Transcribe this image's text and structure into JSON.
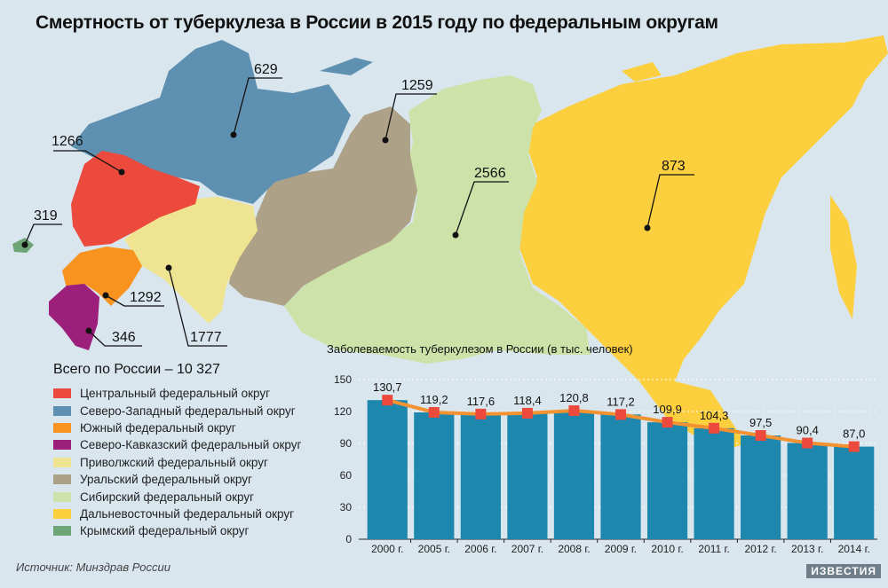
{
  "title": "Смертность от туберкулеза в России в 2015 году по федеральным округам",
  "colors": {
    "background": "#d9e6ee",
    "bar": "#1e87ad",
    "line": "#f29230",
    "marker": "#ec4a3c"
  },
  "legend": {
    "total": "Всего по России – 10 327",
    "items": [
      {
        "label": "Центральный федеральный округ",
        "color": "#ec4a3c"
      },
      {
        "label": "Северо-Западный федеральный округ",
        "color": "#5e90b1"
      },
      {
        "label": "Южный федеральный округ",
        "color": "#f7931e"
      },
      {
        "label": "Северо-Кавказский федеральный округ",
        "color": "#9c1f7c"
      },
      {
        "label": "Приволжский федеральный округ",
        "color": "#efe491"
      },
      {
        "label": "Уральский федеральный округ",
        "color": "#ada287"
      },
      {
        "label": "Сибирский федеральный округ",
        "color": "#cde2a9"
      },
      {
        "label": "Дальневосточный федеральный округ",
        "color": "#fccf3e"
      },
      {
        "label": "Крымский федеральный округ",
        "color": "#6ea576"
      }
    ]
  },
  "regions": [
    {
      "name": "Центральный",
      "deaths": "1266",
      "color": "#ec4a3c"
    },
    {
      "name": "Северо-Западный",
      "deaths": "629",
      "color": "#5e90b1"
    },
    {
      "name": "Южный",
      "deaths": "1292",
      "color": "#f7931e"
    },
    {
      "name": "Северо-Кавказский",
      "deaths": "346",
      "color": "#9c1f7c"
    },
    {
      "name": "Приволжский",
      "deaths": "1777",
      "color": "#efe491"
    },
    {
      "name": "Уральский",
      "deaths": "1259",
      "color": "#ada287"
    },
    {
      "name": "Сибирский",
      "deaths": "2566",
      "color": "#cde2a9"
    },
    {
      "name": "Дальневосточный",
      "deaths": "873",
      "color": "#fccf3e"
    },
    {
      "name": "Крымский",
      "deaths": "319",
      "color": "#6ea576"
    }
  ],
  "chart_data": {
    "type": "bar",
    "title": "Заболеваемость туберкулезом в России (в тыс. человек)",
    "categories": [
      "2000 г.",
      "2005 г.",
      "2006 г.",
      "2007 г.",
      "2008 г.",
      "2009 г.",
      "2010 г.",
      "2011 г.",
      "2012 г.",
      "2013 г.",
      "2014 г."
    ],
    "values": [
      130.7,
      119.2,
      117.6,
      118.4,
      120.8,
      117.2,
      109.9,
      104.3,
      97.5,
      90.4,
      87.0
    ],
    "value_labels": [
      "130,7",
      "119,2",
      "117,6",
      "118,4",
      "120,8",
      "117,2",
      "109,9",
      "104,3",
      "97,5",
      "90,4",
      "87,0"
    ],
    "yticks": [
      "0",
      "30",
      "60",
      "90",
      "120",
      "150"
    ],
    "ylim": [
      0,
      150
    ],
    "grid": true,
    "overlay": "line"
  },
  "source": "Источник: Минздрав России",
  "brand": "ИЗВЕСТИЯ"
}
